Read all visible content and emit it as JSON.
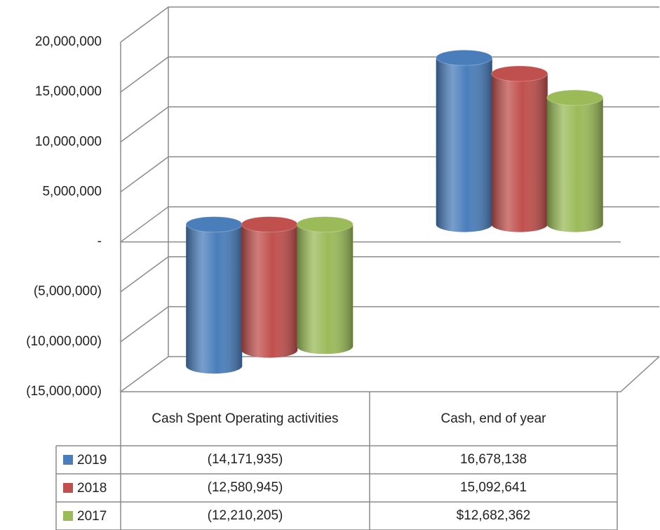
{
  "chart_data": {
    "type": "bar3d",
    "categories": [
      "Cash Spent Operating activities",
      "Cash, end of year"
    ],
    "series": [
      {
        "name": "2019",
        "color": "#4a7ebb",
        "values": [
          -14171935,
          16678138
        ],
        "value_labels": [
          "(14,171,935)",
          "16,678,138"
        ]
      },
      {
        "name": "2018",
        "color": "#c0504d",
        "values": [
          -12580945,
          15092641
        ],
        "value_labels": [
          "(12,580,945)",
          "15,092,641"
        ]
      },
      {
        "name": "2017",
        "color": "#9bbb59",
        "values": [
          -12210205,
          12682362
        ],
        "value_labels": [
          "(12,210,205)",
          "$12,682,362"
        ]
      }
    ],
    "ylim": [
      -15000000,
      20000000
    ],
    "yticks": [
      {
        "value": -15000000,
        "label": "(15,000,000)"
      },
      {
        "value": -10000000,
        "label": "(10,000,000)"
      },
      {
        "value": -5000000,
        "label": "(5,000,000)"
      },
      {
        "value": 0,
        "label": "-"
      },
      {
        "value": 5000000,
        "label": "5,000,000"
      },
      {
        "value": 10000000,
        "label": "10,000,000"
      },
      {
        "value": 15000000,
        "label": "15,000,000"
      },
      {
        "value": 20000000,
        "label": "20,000,000"
      }
    ],
    "grid": true,
    "data_table": true
  }
}
